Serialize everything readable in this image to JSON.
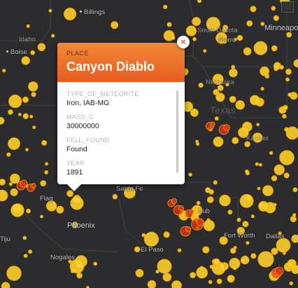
{
  "map": {
    "cities": [
      {
        "name": "Billings",
        "dot": true
      },
      {
        "name": "Boise",
        "dot": true
      },
      {
        "name": "Minneapo",
        "dot": false
      },
      {
        "name": "Pierre",
        "dot": false
      },
      {
        "name": "Nebraska",
        "dot": false
      },
      {
        "name": "Santa Fe",
        "dot": false
      },
      {
        "name": "Phoenix",
        "dot": false
      },
      {
        "name": "Nogales",
        "dot": false
      },
      {
        "name": "El Paso",
        "dot": false
      },
      {
        "name": "Fort Worth",
        "dot": false
      },
      {
        "name": "Dallas",
        "dot": false
      },
      {
        "name": "Flag",
        "dot": false
      },
      {
        "name": "Tiju",
        "dot": false
      },
      {
        "name": "Lub",
        "dot": false
      },
      {
        "name": "Kansas",
        "dot": false
      },
      {
        "name": "Texas",
        "dot": false
      },
      {
        "name": "Idaho",
        "dot": false
      },
      {
        "name": "South Dakota",
        "dot": false
      }
    ],
    "marker_colors": {
      "core": "#ffd02a",
      "ring": "#f0a400",
      "hot": "#e8331a"
    }
  },
  "popup": {
    "kicker": "PLACE",
    "title": "Canyon Diablo",
    "fields": [
      {
        "key": "TYPE_OF_METEORITE",
        "value": "Iron, IAB-MG"
      },
      {
        "key": "MASS_G",
        "value": "30000000"
      },
      {
        "key": "FELL_FOUND",
        "value": "Found"
      },
      {
        "key": "YEAR",
        "value": "1891"
      }
    ],
    "close_label": "×"
  }
}
